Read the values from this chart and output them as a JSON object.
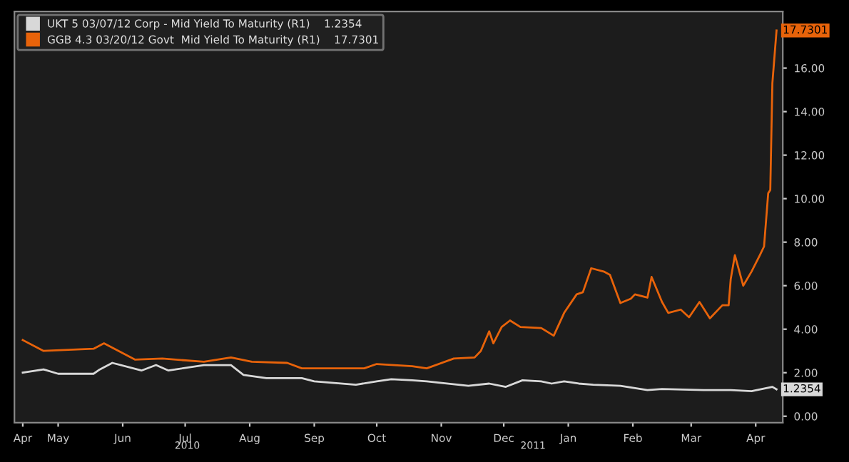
{
  "chart_data": {
    "type": "line",
    "legend": "top left",
    "grid": false,
    "marker": "none",
    "line_style": "solid",
    "ylim": [
      -0.3,
      18.6
    ],
    "yticks": [
      {
        "value": 0,
        "label": "0.00"
      },
      {
        "value": 2,
        "label": "2.00"
      },
      {
        "value": 4,
        "label": "4.00"
      },
      {
        "value": 6,
        "label": "6.00"
      },
      {
        "value": 8,
        "label": "8.00"
      },
      {
        "value": 10,
        "label": "10.00"
      },
      {
        "value": 12,
        "label": "12.00"
      },
      {
        "value": 14,
        "label": "14.00"
      },
      {
        "value": 16,
        "label": "16.00"
      },
      {
        "value": 18,
        "label": null
      }
    ],
    "xlim": [
      "2010-04-24",
      "2011-04-28"
    ],
    "xticks": [
      {
        "value": "2010-04-28",
        "label": "Apr"
      },
      {
        "value": "2010-05-15",
        "label": "May"
      },
      {
        "value": "2010-06-15",
        "label": "Jun"
      },
      {
        "value": "2010-07-15",
        "label": "Jul"
      },
      {
        "value": "2010-08-15",
        "label": "Aug"
      },
      {
        "value": "2010-09-15",
        "label": "Sep"
      },
      {
        "value": "2010-10-15",
        "label": "Oct"
      },
      {
        "value": "2010-11-15",
        "label": "Nov"
      },
      {
        "value": "2010-12-15",
        "label": "Dec"
      },
      {
        "value": "2011-01-15",
        "label": "Jan"
      },
      {
        "value": "2011-02-15",
        "label": "Feb"
      },
      {
        "value": "2011-03-15",
        "label": "Mar"
      },
      {
        "value": "2011-04-15",
        "label": "Apr"
      }
    ],
    "series": [
      {
        "name": "UKT 5 03/07/12 Corp - Mid Yield To Maturity (R1)    1.2354",
        "color": "#d8d8d8",
        "x": [
          "2010-04-28",
          "2010-05-08",
          "2010-05-15",
          "2010-06-01",
          "2010-06-04",
          "2010-06-10",
          "2010-06-24",
          "2010-07-01",
          "2010-07-07",
          "2010-07-24",
          "2010-08-06",
          "2010-08-12",
          "2010-08-23",
          "2010-09-09",
          "2010-09-15",
          "2010-10-05",
          "2010-10-15",
          "2010-10-22",
          "2010-11-01",
          "2010-11-08",
          "2010-11-28",
          "2010-12-08",
          "2010-12-16",
          "2010-12-24",
          "2011-01-02",
          "2011-01-07",
          "2011-01-13",
          "2011-01-20",
          "2011-01-27",
          "2011-02-09",
          "2011-02-22",
          "2011-03-01",
          "2011-03-21",
          "2011-04-03",
          "2011-04-13",
          "2011-04-23",
          "2011-04-25"
        ],
        "values": [
          2.0,
          2.15,
          1.95,
          1.95,
          2.15,
          2.45,
          2.1,
          2.35,
          2.1,
          2.35,
          2.35,
          1.9,
          1.75,
          1.75,
          1.6,
          1.45,
          1.6,
          1.7,
          1.65,
          1.6,
          1.4,
          1.5,
          1.35,
          1.65,
          1.6,
          1.5,
          1.6,
          1.5,
          1.45,
          1.4,
          1.2,
          1.25,
          1.2,
          1.2,
          1.15,
          1.35,
          1.2354
        ]
      },
      {
        "name": "GGB 4.3 03/20/12 Govt  Mid Yield To Maturity (R1)    17.7301",
        "color": "#e8630a",
        "x": [
          "2010-04-28",
          "2010-05-08",
          "2010-06-01",
          "2010-06-06",
          "2010-06-21",
          "2010-07-04",
          "2010-07-24",
          "2010-08-06",
          "2010-08-16",
          "2010-09-02",
          "2010-09-09",
          "2010-09-29",
          "2010-10-09",
          "2010-10-15",
          "2010-11-01",
          "2010-11-08",
          "2010-11-21",
          "2010-12-01",
          "2010-12-04",
          "2010-12-08",
          "2010-12-10",
          "2010-12-14",
          "2010-12-18",
          "2010-12-23",
          "2011-01-02",
          "2011-01-08",
          "2011-01-13",
          "2011-01-19",
          "2011-01-22",
          "2011-01-26",
          "2011-02-01",
          "2011-02-04",
          "2011-02-09",
          "2011-02-14",
          "2011-02-16",
          "2011-02-22",
          "2011-02-24",
          "2011-03-01",
          "2011-03-04",
          "2011-03-10",
          "2011-03-14",
          "2011-03-19",
          "2011-03-24",
          "2011-03-30",
          "2011-04-02",
          "2011-04-03",
          "2011-04-05",
          "2011-04-09",
          "2011-04-13",
          "2011-04-17",
          "2011-04-19",
          "2011-04-21",
          "2011-04-22",
          "2011-04-23",
          "2011-04-25"
        ],
        "values": [
          3.5,
          3.0,
          3.1,
          3.35,
          2.6,
          2.65,
          2.5,
          2.7,
          2.5,
          2.45,
          2.2,
          2.2,
          2.2,
          2.4,
          2.3,
          2.2,
          2.65,
          2.7,
          3.0,
          3.9,
          3.35,
          4.1,
          4.4,
          4.1,
          4.05,
          3.7,
          4.75,
          5.6,
          5.7,
          6.8,
          6.65,
          6.5,
          5.2,
          5.4,
          5.6,
          5.45,
          6.4,
          5.25,
          4.75,
          4.9,
          4.55,
          5.25,
          4.5,
          5.1,
          5.1,
          6.3,
          7.4,
          6.0,
          6.65,
          7.4,
          7.8,
          10.25,
          10.4,
          15.3,
          17.7301
        ]
      }
    ],
    "annotations": [
      {
        "text": "1.2354",
        "x": "2011-04-25",
        "y": 1.2354
      },
      {
        "text": "17.7301",
        "x": "2011-04-25",
        "y": 17.7301
      },
      "2010",
      "2011"
    ]
  }
}
